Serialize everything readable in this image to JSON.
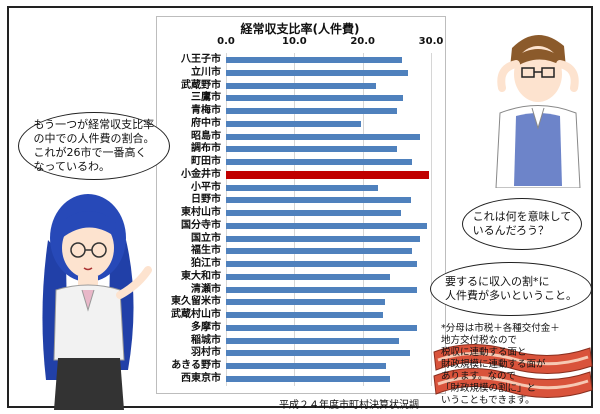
{
  "chart_data": {
    "type": "bar",
    "orientation": "horizontal",
    "title": "経常収支比率(人件費)",
    "xlim": [
      0,
      30
    ],
    "ticks": [
      "0.0",
      "10.0",
      "20.0",
      "30.0"
    ],
    "categories": [
      "八王子市",
      "立川市",
      "武蔵野市",
      "三鷹市",
      "青梅市",
      "府中市",
      "昭島市",
      "調布市",
      "町田市",
      "小金井市",
      "小平市",
      "日野市",
      "東村山市",
      "国分寺市",
      "国立市",
      "福生市",
      "狛江市",
      "東大和市",
      "清瀬市",
      "東久留米市",
      "武蔵村山市",
      "多摩市",
      "稲城市",
      "羽村市",
      "あきる野市",
      "西東京市"
    ],
    "values": [
      25.8,
      26.7,
      22.0,
      25.9,
      25.0,
      19.7,
      28.4,
      25.0,
      27.2,
      29.7,
      22.3,
      27.1,
      25.6,
      29.4,
      28.4,
      27.2,
      28.0,
      24.0,
      28.0,
      23.3,
      23.0,
      27.9,
      25.3,
      26.9,
      23.4,
      24.0
    ],
    "highlight": "小金井市",
    "bar_color": "#4f81bd",
    "highlight_color": "#c00000"
  },
  "source": "平成２４年度市町村決算状況調",
  "bubbles": {
    "left": [
      "もう一つが経常収支比率",
      "の中での人件費の割合。",
      "これが26市で一番高く",
      "なっているわ。"
    ],
    "right_top": [
      "これは何を意味して",
      "いるんだろう？"
    ],
    "right_bottom": [
      "要するに収入の割*に",
      "人件費が多いということ。"
    ]
  },
  "note": [
    "*分母は市税＋各種交付金＋",
    "地方交付税なので",
    "税収に連動する面と",
    "財政規模に連動する面が",
    "あります。なので",
    "「財政規模の割に」と",
    "いうこともできます。"
  ]
}
